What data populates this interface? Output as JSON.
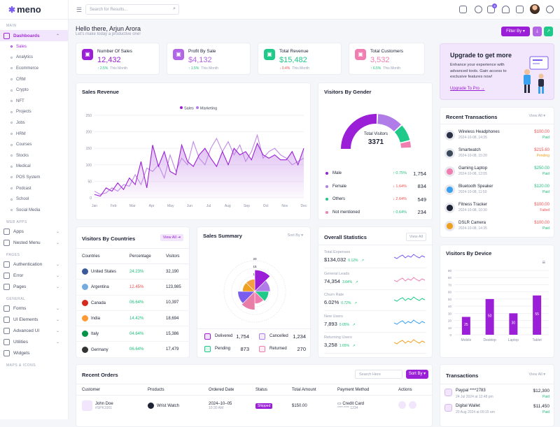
{
  "app": {
    "name": "meno"
  },
  "sidebar": {
    "sections": [
      "MAIN",
      "WEB APPS",
      "PAGES",
      "GENERAL",
      "MAPS & ICONS"
    ],
    "dashboards": "Dashboards",
    "subitems": [
      "Sales",
      "Analytics",
      "Ecommerce",
      "CRM",
      "Crypto",
      "NFT",
      "Projects",
      "Jobs",
      "HRM",
      "Courses",
      "Stocks",
      "Medical",
      "POS System",
      "Podcast",
      "School",
      "Social Media"
    ],
    "apps": "Apps",
    "nested": "Nested Menu",
    "auth": "Authentication",
    "error": "Error",
    "pages": "Pages",
    "forms": "Forms",
    "ui": "UI Elements",
    "advui": "Advanced UI",
    "utilities": "Utilities",
    "widgets": "Widgets"
  },
  "topbar": {
    "search_placeholder": "Search for Results...",
    "notif_count": "4"
  },
  "greeting": {
    "title": "Hello there, Arjun Arora",
    "subtitle": "Let's make today a productive one!",
    "filter": "Filter By"
  },
  "stats": [
    {
      "title": "Number Of Sales",
      "value": "12,432",
      "change": "2.5%",
      "dir": "up",
      "period": "This Month",
      "color": "#9b1fd6"
    },
    {
      "title": "Profit By Sale",
      "value": "$4,132",
      "change": "1.5%",
      "dir": "up",
      "period": "This Month",
      "color": "#b266e6"
    },
    {
      "title": "Total Revenue",
      "value": "$15,482",
      "change": "0.4%",
      "dir": "down",
      "period": "This Month",
      "color": "#1ec98a"
    },
    {
      "title": "Total Customers",
      "value": "3,532",
      "change": "6.5%",
      "dir": "up",
      "period": "This Month",
      "color": "#f07eb0"
    }
  ],
  "upgrade": {
    "title": "Upgrade to get more",
    "text": "Enhance your experience with advanced tools. Gain access to exclusive features now!",
    "link": "Upgrade To Pro →"
  },
  "sales_revenue": {
    "title": "Sales Revenue"
  },
  "chart_data": [
    {
      "type": "area",
      "legend": [
        "Sales",
        "Marketing"
      ],
      "xlabels": [
        "Jan",
        "Feb",
        "Mar",
        "Apr",
        "May",
        "Jun",
        "Jul",
        "Aug",
        "Sep",
        "Oct",
        "Nov",
        "Dec"
      ],
      "ylabels": [
        "0",
        "50",
        "100",
        "150",
        "200",
        "250"
      ],
      "ylim": [
        0,
        250
      ],
      "series": [
        {
          "name": "Sales",
          "values": [
            10,
            5,
            30,
            20,
            45,
            25,
            60,
            40,
            110,
            30,
            160,
            95,
            140,
            80,
            70,
            160,
            110,
            95,
            130,
            150,
            120,
            95,
            140,
            100,
            150,
            130,
            140,
            115,
            165,
            130,
            120,
            130,
            115,
            115,
            140,
            100,
            150
          ]
        },
        {
          "name": "Marketing",
          "values": [
            20,
            10,
            15,
            30,
            20,
            40,
            35,
            70,
            40,
            90,
            80,
            100,
            60,
            130,
            80,
            120,
            100,
            170,
            120,
            100,
            150,
            180,
            140,
            170,
            130,
            160,
            110,
            140,
            190,
            120,
            140,
            150,
            130,
            120,
            100,
            110,
            120
          ]
        }
      ]
    },
    {
      "type": "pie",
      "values": [
        14,
        10,
        9,
        8,
        12,
        11,
        8,
        8
      ],
      "ticks": [
        "20",
        "15",
        "10",
        "5"
      ]
    },
    {
      "type": "bar",
      "categories": [
        "Mobile",
        "Desktop",
        "Laptop",
        "Tablet"
      ],
      "values": [
        25,
        50,
        30,
        55
      ],
      "ylim": [
        0,
        90
      ],
      "ylabels": [
        "0",
        "10",
        "20",
        "30",
        "40",
        "50",
        "60",
        "70",
        "80",
        "90"
      ]
    }
  ],
  "gender": {
    "title": "Visitors By Gender",
    "total_label": "Total Visitors",
    "total": "3371",
    "rows": [
      {
        "label": "Male",
        "change": "0.75%",
        "dir": "up",
        "value": "1,754",
        "color": "#9b1fd6"
      },
      {
        "label": "Female",
        "change": "1.64%",
        "dir": "down",
        "value": "834",
        "color": "#b07ce8"
      },
      {
        "label": "Others",
        "change": "2.64%",
        "dir": "down",
        "value": "549",
        "color": "#1ec98a"
      },
      {
        "label": "Not mentioned",
        "change": "0.64%",
        "dir": "up",
        "value": "234",
        "color": "#f07eb0"
      }
    ]
  },
  "transactions_recent": {
    "title": "Recent Transactions",
    "view_all": "View All",
    "rows": [
      {
        "name": "Wireless Headphones",
        "date": "2024-10-08, 14:35",
        "amount": "$100.00",
        "status": "Paid",
        "scolor": "#1bbf7a",
        "acolor": "#f04d4d"
      },
      {
        "name": "Smartwatch",
        "date": "2024-10-08, 15:20",
        "amount": "$215.60",
        "status": "Pending",
        "scolor": "#f0a020",
        "acolor": "#f04d4d"
      },
      {
        "name": "Gaming Laptop",
        "date": "2024-10-08, 12:05",
        "amount": "$250.00",
        "status": "Paid",
        "scolor": "#1bbf7a",
        "acolor": "#1bbf7a"
      },
      {
        "name": "Bluetooth Speaker",
        "date": "2024-10-08, 11:50",
        "amount": "$120.00",
        "status": "Paid",
        "scolor": "#1bbf7a",
        "acolor": "#1bbf7a"
      },
      {
        "name": "Fitness Tracker",
        "date": "2024-10-08, 10:30",
        "amount": "$100.00",
        "status": "Failed",
        "scolor": "#f04d4d",
        "acolor": "#f04d4d"
      },
      {
        "name": "DSLR Camera",
        "date": "2024-10-08, 14:35",
        "amount": "$100.00",
        "status": "Paid",
        "scolor": "#1bbf7a",
        "acolor": "#f04d4d"
      }
    ]
  },
  "countries": {
    "title": "Visitors By Countries",
    "view_all": "View All",
    "headers": [
      "Countries",
      "Percentage",
      "Visitors"
    ],
    "rows": [
      {
        "name": "United States",
        "pct": "24.23%",
        "dir": "up",
        "visitors": "32,190",
        "flag": "#3c5a9a"
      },
      {
        "name": "Argentina",
        "pct": "12.45%",
        "dir": "down",
        "visitors": "123,985",
        "flag": "#74acdf"
      },
      {
        "name": "Canada",
        "pct": "06.64%",
        "dir": "up",
        "visitors": "10,397",
        "flag": "#d52b1e"
      },
      {
        "name": "India",
        "pct": "14.42%",
        "dir": "up",
        "visitors": "18,694",
        "flag": "#ff9933"
      },
      {
        "name": "Italy",
        "pct": "04.64%",
        "dir": "up",
        "visitors": "15,386",
        "flag": "#009246"
      },
      {
        "name": "Germany",
        "pct": "06.64%",
        "dir": "up",
        "visitors": "17,479",
        "flag": "#333333"
      }
    ]
  },
  "sales_summary": {
    "title": "Sales Summary",
    "sort": "Sort By",
    "items": [
      {
        "label": "Delivered",
        "value": "1,754",
        "color": "#9b1fd6"
      },
      {
        "label": "Cancelled",
        "value": "1,234",
        "color": "#b07ce8"
      },
      {
        "label": "Pending",
        "value": "873",
        "color": "#1ec98a"
      },
      {
        "label": "Returned",
        "value": "270",
        "color": "#f07eb0"
      }
    ]
  },
  "overall": {
    "title": "Overall Statistics",
    "view_all": "View All",
    "rows": [
      {
        "label": "Total Expenses",
        "value": "$134,032",
        "change": "0.12%",
        "color": "#7b5cf0"
      },
      {
        "label": "General Leads",
        "value": "74,354",
        "change": "3.64%",
        "color": "#f07eb0"
      },
      {
        "label": "Churn Rate",
        "value": "6.02%",
        "change": "0.72%",
        "color": "#1ec98a"
      },
      {
        "label": "New Users",
        "value": "7,893",
        "change": "0.05%",
        "color": "#3aa0f0"
      },
      {
        "label": "Returning Users",
        "value": "3,258",
        "change": "1.65%",
        "color": "#f0a020"
      }
    ]
  },
  "device": {
    "title": "Visitors By Device"
  },
  "orders": {
    "title": "Recent Orders",
    "search_placeholder": "Search Here",
    "sort": "Sort By",
    "headers": [
      "Customer",
      "Products",
      "Ordered Date",
      "Status",
      "Total Amount",
      "Payment Method",
      "Actions"
    ],
    "row": {
      "name": "John Doe",
      "id": "#SPK1001",
      "product": "Wrist Watch",
      "date": "2024–10–05",
      "time": "10:30 AM",
      "status": "Shipped",
      "amount": "$150.00",
      "method": "Credit Card",
      "card": "**** **** 1234"
    }
  },
  "transactions": {
    "title": "Transactions",
    "view_all": "View All",
    "rows": [
      {
        "name": "Paypal ****2783",
        "date": "24 Jul 2024 at 12:48 pm",
        "amount": "$12,300",
        "status": "Paid"
      },
      {
        "name": "Digital Wallet",
        "date": "20 Aug 2024 at 09:15 am",
        "amount": "$11,450",
        "status": "Paid"
      }
    ]
  }
}
